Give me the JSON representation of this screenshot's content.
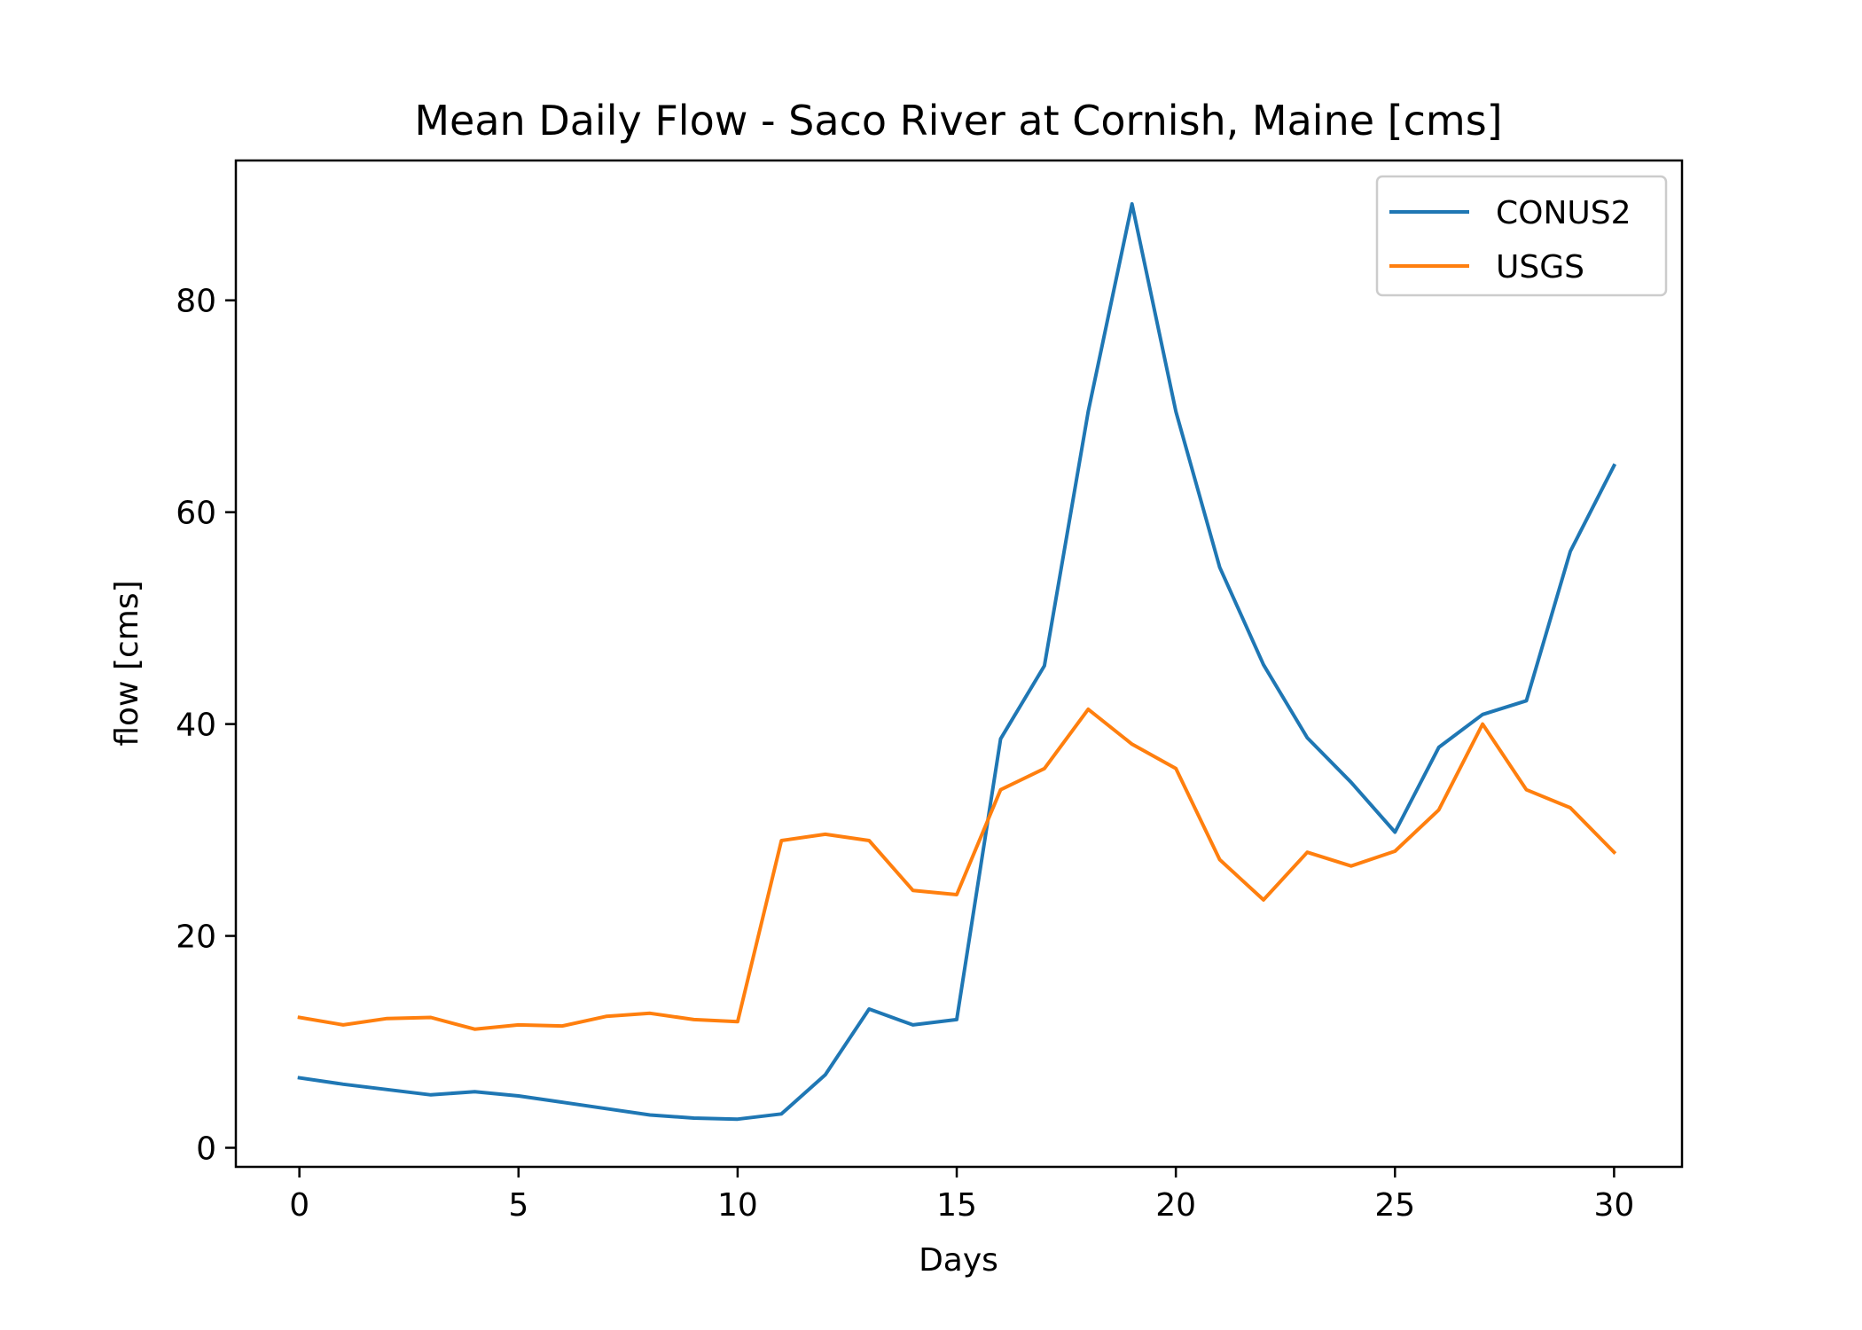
{
  "chart_data": {
    "type": "line",
    "title": "Mean Daily Flow - Saco River at Cornish, Maine [cms]",
    "xlabel": "Days",
    "ylabel": "flow [cms]",
    "xlim": [
      -1.45,
      31.55
    ],
    "ylim": [
      -1.8,
      93.2
    ],
    "xticks": [
      0,
      5,
      10,
      15,
      20,
      25,
      30
    ],
    "yticks": [
      0,
      20,
      40,
      60,
      80
    ],
    "grid": false,
    "legend_position": "top-right",
    "x": [
      0,
      1,
      2,
      3,
      4,
      5,
      6,
      7,
      8,
      9,
      10,
      11,
      12,
      13,
      14,
      15,
      16,
      17,
      18,
      19,
      20,
      21,
      22,
      23,
      24,
      25,
      26,
      27,
      28,
      29,
      30
    ],
    "series": [
      {
        "name": "CONUS2",
        "color": "#1f77b4",
        "values": [
          6.6,
          6.0,
          5.5,
          5.0,
          5.3,
          4.9,
          4.3,
          3.7,
          3.1,
          2.8,
          2.7,
          3.2,
          6.9,
          13.1,
          11.6,
          12.1,
          38.6,
          45.5,
          69.5,
          89.1,
          69.5,
          54.8,
          45.6,
          38.7,
          34.5,
          29.8,
          37.8,
          40.9,
          42.2,
          56.3,
          64.4
        ]
      },
      {
        "name": "USGS",
        "color": "#ff7f0e",
        "values": [
          12.3,
          11.6,
          12.2,
          12.3,
          11.2,
          11.6,
          11.5,
          12.4,
          12.7,
          12.1,
          11.9,
          29.0,
          29.6,
          29.0,
          24.3,
          23.9,
          33.8,
          35.8,
          41.4,
          38.1,
          35.8,
          27.2,
          23.4,
          27.9,
          26.6,
          28.0,
          31.9,
          40.0,
          33.8,
          32.1,
          27.9
        ]
      }
    ]
  }
}
